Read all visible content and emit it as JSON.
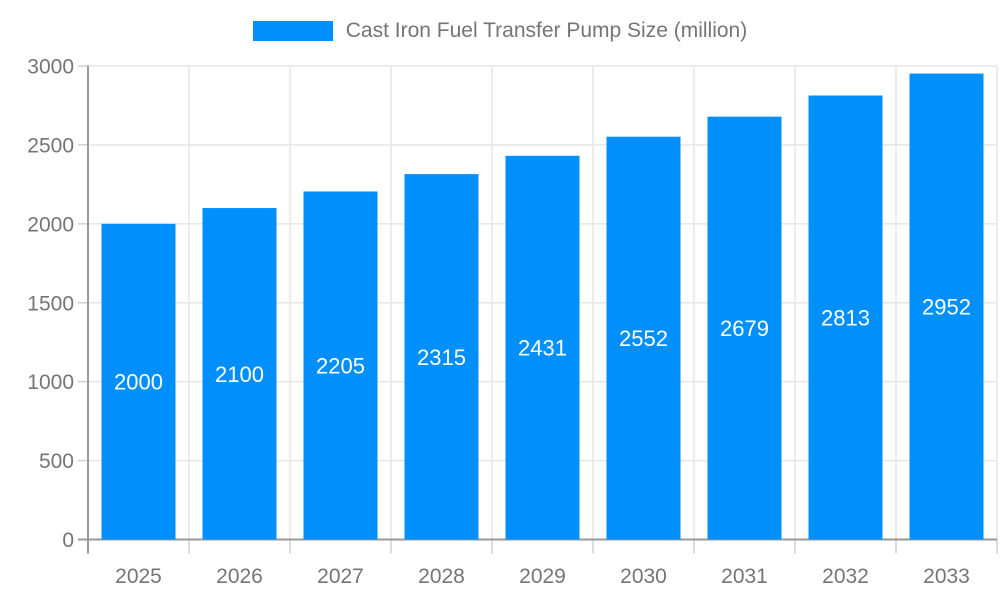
{
  "legend": {
    "label": "Cast Iron Fuel Transfer Pump Size (million)"
  },
  "chart_data": {
    "type": "bar",
    "title": "",
    "categories": [
      "2025",
      "2026",
      "2027",
      "2028",
      "2029",
      "2030",
      "2031",
      "2032",
      "2033"
    ],
    "series": [
      {
        "name": "Cast Iron Fuel Transfer Pump Size (million)",
        "values": [
          2000,
          2100,
          2205,
          2315,
          2431,
          2552,
          2679,
          2813,
          2952
        ]
      }
    ],
    "xlabel": "",
    "ylabel": "",
    "ylim": [
      0,
      3000
    ],
    "yticks": [
      0,
      500,
      1000,
      1500,
      2000,
      2500,
      3000
    ],
    "grid": true,
    "legend_position": "top",
    "bar_labels_visible": true,
    "bar_label_position": "center-inside"
  },
  "colors": {
    "bar": "#008FFB",
    "bar_label": "#ffffff",
    "axis_line": "#999999",
    "tick_line": "#d0d0d0",
    "grid_line": "#e6e6e6",
    "text": "#757575",
    "background": "#ffffff"
  }
}
